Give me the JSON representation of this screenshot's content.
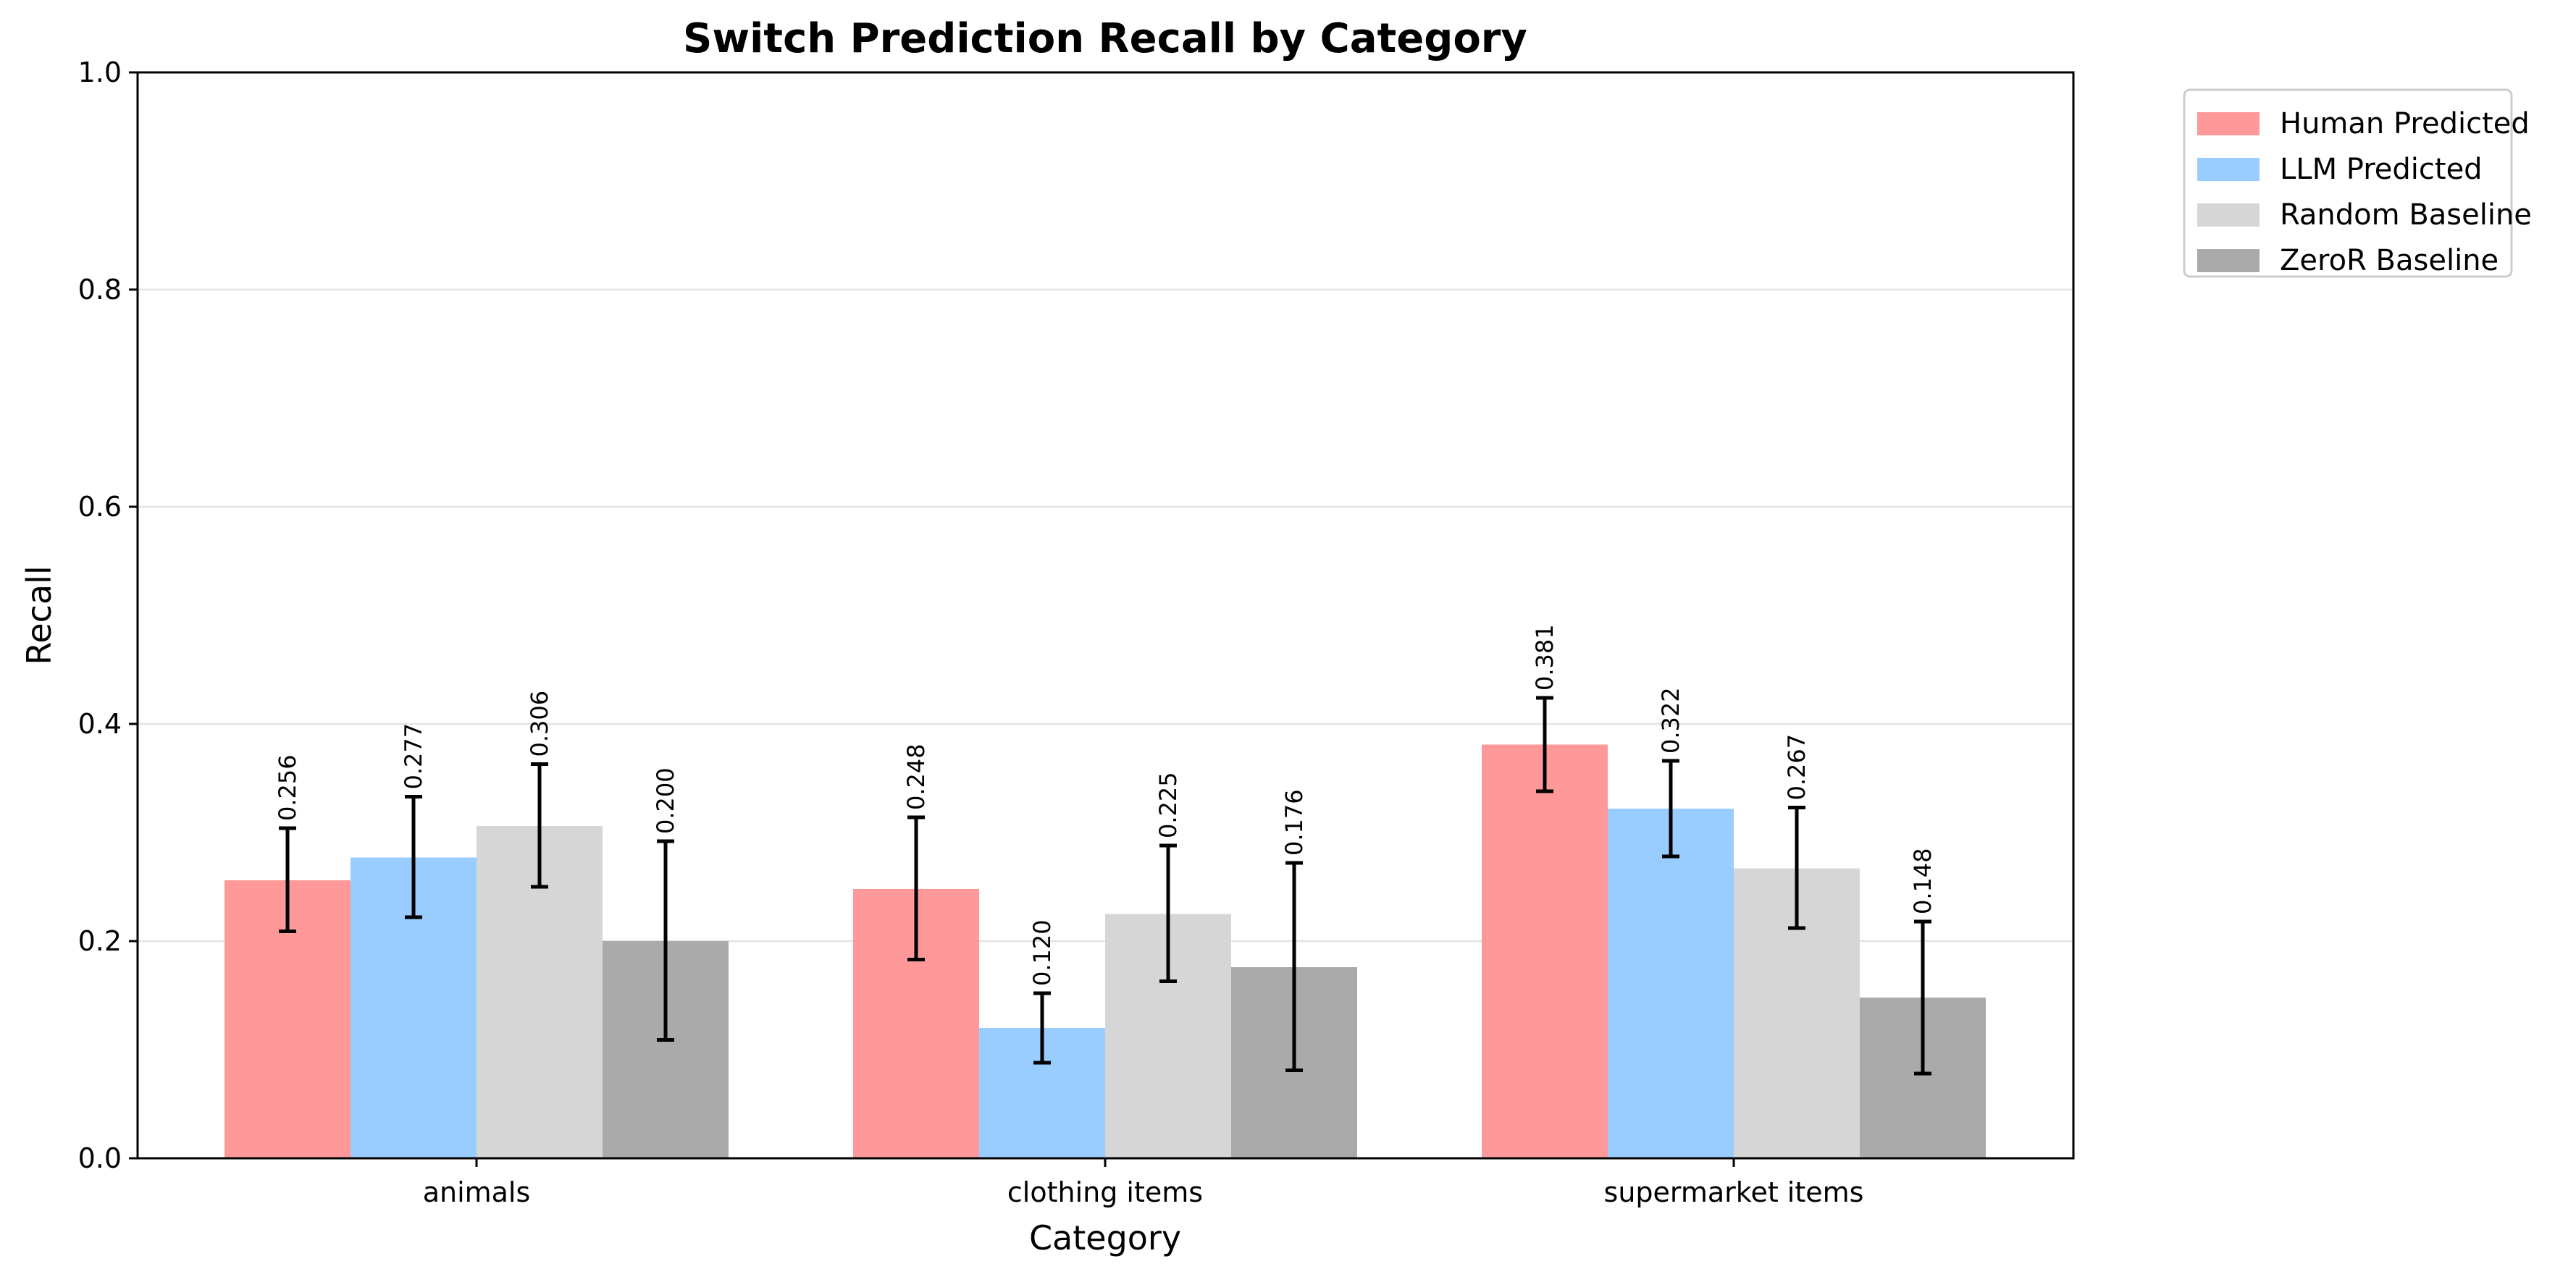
{
  "chart_data": {
    "type": "bar",
    "title": "Switch Prediction Recall by Category",
    "xlabel": "Category",
    "ylabel": "Recall",
    "ylim": [
      0,
      1.0
    ],
    "yticks": [
      0.0,
      0.2,
      0.4,
      0.6,
      0.8,
      1.0
    ],
    "ytick_labels": [
      "0.0",
      "0.2",
      "0.4",
      "0.6",
      "0.8",
      "1.0"
    ],
    "grid": "y",
    "legend_position": "outside-top-right",
    "categories": [
      "animals",
      "clothing items",
      "supermarket items"
    ],
    "series": [
      {
        "name": "Human Predicted",
        "color": "#ff9999",
        "values": [
          0.256,
          0.248,
          0.381
        ],
        "labels": [
          "0.256",
          "0.248",
          "0.381"
        ],
        "err_low": [
          0.209,
          0.183,
          0.338
        ],
        "err_high": [
          0.304,
          0.314,
          0.424
        ]
      },
      {
        "name": "LLM Predicted",
        "color": "#99ccff",
        "values": [
          0.277,
          0.12,
          0.322
        ],
        "labels": [
          "0.277",
          "0.120",
          "0.322"
        ],
        "err_low": [
          0.222,
          0.088,
          0.278
        ],
        "err_high": [
          0.333,
          0.152,
          0.366
        ]
      },
      {
        "name": "Random Baseline",
        "color": "#d6d6d6",
        "values": [
          0.306,
          0.225,
          0.267
        ],
        "labels": [
          "0.306",
          "0.225",
          "0.267"
        ],
        "err_low": [
          0.25,
          0.163,
          0.212
        ],
        "err_high": [
          0.363,
          0.288,
          0.323
        ]
      },
      {
        "name": "ZeroR Baseline",
        "color": "#aaaaaa",
        "values": [
          0.2,
          0.176,
          0.148
        ],
        "labels": [
          "0.200",
          "0.176",
          "0.148"
        ],
        "err_low": [
          0.109,
          0.081,
          0.078
        ],
        "err_high": [
          0.292,
          0.272,
          0.218
        ]
      }
    ]
  }
}
